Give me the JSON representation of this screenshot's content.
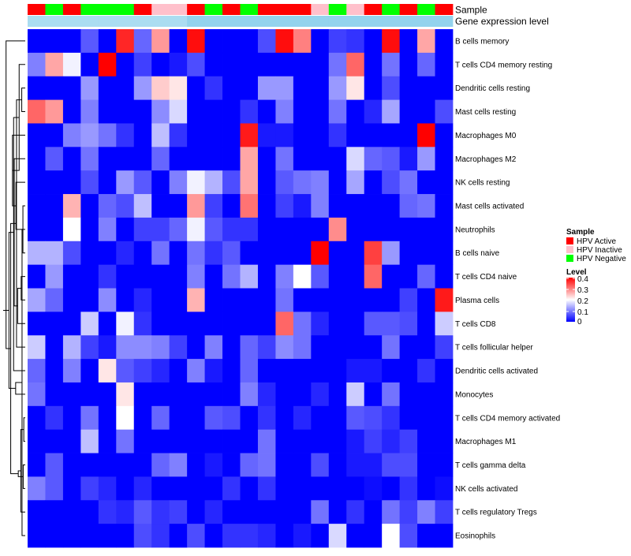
{
  "chart_data": {
    "type": "heatmap",
    "title": "",
    "annotation_rows": [
      "Sample",
      "Gene expression level"
    ],
    "legend": {
      "sample_title": "Sample",
      "sample_items": [
        {
          "label": "HPV Active",
          "color": "#ff0000"
        },
        {
          "label": "HPV Inactive",
          "color": "#ffc0cb"
        },
        {
          "label": "HPV Negative",
          "color": "#00ff00"
        }
      ],
      "level_title": "Level",
      "level_ticks": [
        "0.4",
        "0.3",
        "0.2",
        "0.1",
        "0"
      ]
    },
    "colors": {
      "low": "#0000ff",
      "mid": "#ffffff",
      "high": "#ff0000",
      "hpv_active": "#ff0000",
      "hpv_inactive": "#ffc0cb",
      "hpv_negative": "#00ff00",
      "gene_expression_bar": "#87ceeb"
    },
    "level_range": [
      0,
      0.4
    ],
    "sample_groups": [
      "A",
      "N",
      "A",
      "N",
      "N",
      "N",
      "A",
      "I",
      "I",
      "A",
      "N",
      "A",
      "N",
      "A",
      "A",
      "A",
      "I",
      "N",
      "I",
      "A",
      "N",
      "A",
      "N",
      "A"
    ],
    "gene_expression_shades": [
      0.12,
      0.12,
      0.12,
      0.12,
      0.12,
      0.12,
      0.12,
      0.12,
      0.12,
      0.2,
      0.2,
      0.2,
      0.2,
      0.2,
      0.2,
      0.2,
      0.2,
      0.2,
      0.2,
      0.2,
      0.2,
      0.2,
      0.2,
      0.2
    ],
    "rows": [
      "B cells memory",
      "T cells CD4 memory resting",
      "Dendritic cells resting",
      "Mast cells resting",
      "Macrophages M0",
      "Macrophages M2",
      "NK cells resting",
      "Mast cells activated",
      "Neutrophils",
      "B cells naive",
      "T cells CD4 naive",
      "Plasma cells",
      "T cells CD8",
      "T cells follicular helper",
      "Dendritic cells activated",
      "Monocytes",
      "T cells CD4 memory activated",
      "Macrophages M1",
      "T cells gamma delta",
      "NK cells activated",
      "T cells regulatory  Tregs",
      "Eosinophils"
    ],
    "values": [
      [
        0,
        0,
        0,
        0.07,
        0,
        0.37,
        0.08,
        0.28,
        0,
        0.39,
        0,
        0,
        0,
        0.06,
        0.39,
        0.3,
        0,
        0.05,
        0.04,
        0,
        0.39,
        0,
        0.27,
        0
      ],
      [
        0.1,
        0.27,
        0.19,
        0,
        0.4,
        0,
        0.05,
        0,
        0.02,
        0.06,
        0,
        0,
        0,
        0,
        0,
        0,
        0,
        0.09,
        0.32,
        0,
        0.09,
        0,
        0.08,
        0
      ],
      [
        0,
        0,
        0,
        0.12,
        0,
        0,
        0.12,
        0.24,
        0.22,
        0,
        0.04,
        0,
        0,
        0.12,
        0.12,
        0,
        0,
        0.12,
        0.22,
        0,
        0.06,
        0,
        0,
        0
      ],
      [
        0.32,
        0.28,
        0,
        0.1,
        0,
        0,
        0,
        0.11,
        0.17,
        0,
        0,
        0,
        0.04,
        0,
        0.1,
        0,
        0,
        0.09,
        0,
        0.03,
        0.13,
        0,
        0,
        0.06
      ],
      [
        0,
        0,
        0.1,
        0.12,
        0.09,
        0.04,
        0,
        0.15,
        0.04,
        0,
        0,
        0,
        0.38,
        0.02,
        0.02,
        0,
        0,
        0.04,
        0,
        0,
        0,
        0,
        0.4,
        0
      ],
      [
        0,
        0.07,
        0,
        0.09,
        0,
        0,
        0,
        0.08,
        0,
        0,
        0,
        0,
        0.27,
        0,
        0.09,
        0,
        0,
        0,
        0.17,
        0.08,
        0.07,
        0.02,
        0.12,
        0
      ],
      [
        0,
        0,
        0,
        0.06,
        0,
        0.12,
        0.07,
        0,
        0.1,
        0.19,
        0.14,
        0.06,
        0.27,
        0,
        0.07,
        0.09,
        0.1,
        0,
        0.13,
        0,
        0.06,
        0.09,
        0,
        0
      ],
      [
        0,
        0,
        0.26,
        0,
        0.08,
        0.06,
        0.15,
        0,
        0,
        0.28,
        0.05,
        0,
        0.31,
        0,
        0.05,
        0.02,
        0.1,
        0,
        0,
        0,
        0,
        0.08,
        0.09,
        0
      ],
      [
        0,
        0,
        0.2,
        0,
        0.1,
        0,
        0.05,
        0.05,
        0.08,
        0.19,
        0.07,
        0.04,
        0.04,
        0,
        0,
        0,
        0,
        0.29,
        0,
        0,
        0,
        0,
        0,
        0
      ],
      [
        0.14,
        0.14,
        0.06,
        0,
        0,
        0.03,
        0,
        0.09,
        0,
        0.09,
        0.04,
        0.07,
        0,
        0,
        0,
        0,
        0.4,
        0,
        0,
        0.35,
        0.12,
        0,
        0,
        0
      ],
      [
        0,
        0.12,
        0,
        0,
        0.04,
        0,
        0,
        0,
        0,
        0.1,
        0,
        0.09,
        0.14,
        0,
        0.1,
        0.2,
        0.07,
        0,
        0,
        0.32,
        0,
        0,
        0.08,
        0
      ],
      [
        0.13,
        0.08,
        0,
        0,
        0.11,
        0,
        0.03,
        0,
        0,
        0.26,
        0,
        0,
        0,
        0,
        0.09,
        0,
        0,
        0,
        0,
        0,
        0,
        0.05,
        0,
        0.38
      ],
      [
        0,
        0,
        0,
        0.16,
        0,
        0.19,
        0.04,
        0,
        0,
        0,
        0,
        0,
        0,
        0,
        0.32,
        0.09,
        0.03,
        0,
        0,
        0.07,
        0.07,
        0.06,
        0,
        0.16
      ],
      [
        0.16,
        0,
        0.14,
        0.05,
        0.02,
        0.11,
        0.11,
        0.1,
        0.05,
        0,
        0.1,
        0,
        0.08,
        0.05,
        0.11,
        0.09,
        0,
        0,
        0,
        0,
        0.09,
        0,
        0,
        0.05
      ],
      [
        0.08,
        0,
        0.1,
        0,
        0.22,
        0.07,
        0.05,
        0.03,
        0,
        0.1,
        0.02,
        0,
        0.08,
        0,
        0,
        0,
        0,
        0,
        0.02,
        0.02,
        0,
        0,
        0.04,
        0
      ],
      [
        0.09,
        0,
        0,
        0,
        0,
        0.22,
        0,
        0,
        0,
        0,
        0,
        0,
        0.1,
        0.03,
        0,
        0,
        0.03,
        0,
        0.16,
        0,
        0.09,
        0,
        0,
        0
      ],
      [
        0,
        0.04,
        0,
        0.09,
        0,
        0.2,
        0,
        0.08,
        0,
        0,
        0.07,
        0.06,
        0,
        0.04,
        0,
        0.03,
        0,
        0,
        0.07,
        0.06,
        0.04,
        0,
        0,
        0
      ],
      [
        0,
        0,
        0,
        0.15,
        0,
        0.09,
        0,
        0,
        0,
        0,
        0,
        0,
        0,
        0.09,
        0,
        0,
        0,
        0,
        0.02,
        0.05,
        0.03,
        0.05,
        0,
        0
      ],
      [
        0,
        0.07,
        0,
        0,
        0,
        0,
        0,
        0.08,
        0.1,
        0,
        0.02,
        0,
        0.08,
        0.09,
        0,
        0,
        0.06,
        0,
        0.02,
        0.02,
        0.06,
        0.06,
        0,
        0
      ],
      [
        0.1,
        0.07,
        0,
        0.05,
        0.03,
        0,
        0.03,
        0,
        0,
        0,
        0,
        0.04,
        0,
        0.04,
        0,
        0,
        0,
        0,
        0,
        0.01,
        0,
        0.04,
        0,
        0.01
      ],
      [
        0,
        0,
        0,
        0,
        0.04,
        0.03,
        0.07,
        0.04,
        0.05,
        0,
        0.03,
        0,
        0,
        0,
        0,
        0,
        0.09,
        0,
        0.04,
        0,
        0.09,
        0.05,
        0.1,
        0.05
      ],
      [
        0,
        0,
        0,
        0,
        0,
        0,
        0.06,
        0.04,
        0,
        0.06,
        0,
        0.04,
        0.04,
        0.03,
        0,
        0.02,
        0,
        0.17,
        0,
        0,
        0.2,
        0.06,
        0,
        0
      ]
    ],
    "row_dendrogram": [
      [
        9,
        7,
        0.8
      ],
      [
        10,
        11,
        1.4
      ],
      [
        22,
        8,
        2.0
      ],
      [
        23,
        12,
        2.6
      ],
      [
        24,
        6,
        3.2
      ],
      [
        25,
        5,
        3.8
      ],
      [
        26,
        4,
        4.4
      ],
      [
        3,
        2,
        1.2
      ],
      [
        28,
        1,
        2.1
      ],
      [
        29,
        13,
        3.0
      ],
      [
        30,
        14,
        4.0
      ],
      [
        16,
        17,
        0.5
      ],
      [
        18,
        19,
        0.7
      ],
      [
        33,
        20,
        1.5
      ],
      [
        21,
        22,
        1.1
      ],
      [
        34,
        35,
        2.4
      ],
      [
        36,
        15,
        3.3
      ],
      [
        31,
        37,
        5.0
      ],
      [
        27,
        38,
        5.6
      ],
      [
        0,
        39,
        6.6
      ],
      [
        40,
        -1,
        7.6
      ]
    ]
  }
}
